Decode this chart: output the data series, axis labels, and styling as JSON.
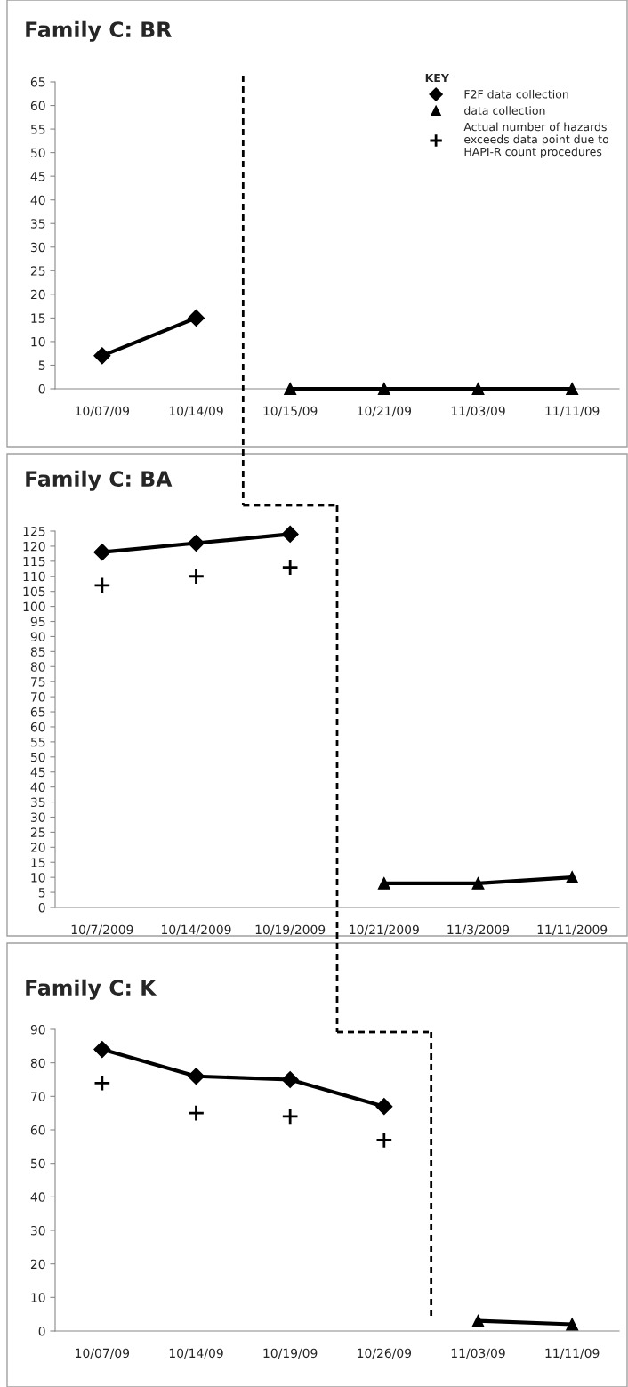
{
  "chart_data": [
    {
      "type": "line",
      "title": "Family C: BR",
      "categories": [
        "10/07/09",
        "10/14/09",
        "10/15/09",
        "10/21/09",
        "11/03/09",
        "11/11/09"
      ],
      "series": [
        {
          "name": "F2F data collection",
          "color": "#000000",
          "marker": "diamond",
          "values": [
            7,
            15,
            null,
            null,
            null,
            null
          ]
        },
        {
          "name": "data collection",
          "color": "#000000",
          "marker": "triangle",
          "values": [
            null,
            null,
            0,
            0,
            0,
            0
          ]
        },
        {
          "name": "Actual number of hazards exceeds data point due to HAPI-R count procedures",
          "type": "scatter",
          "color": "#000000",
          "marker": "cross",
          "values": [
            null,
            null,
            null,
            null,
            null,
            null
          ]
        }
      ],
      "ylim": [
        0,
        65
      ],
      "yticks": [
        0,
        5,
        10,
        15,
        20,
        25,
        30,
        35,
        40,
        45,
        50,
        55,
        60,
        65
      ],
      "legend": "top right",
      "legend_title": "KEY",
      "grid": false
    },
    {
      "type": "line",
      "title": "Family C: BA",
      "categories": [
        "10/7/2009",
        "10/14/2009",
        "10/19/2009",
        "10/21/2009",
        "11/3/2009",
        "11/11/2009"
      ],
      "series": [
        {
          "color": "#000000",
          "marker": "diamond",
          "values": [
            118,
            121,
            124,
            null,
            null,
            null
          ]
        },
        {
          "color": "#000000",
          "marker": "triangle",
          "values": [
            null,
            null,
            null,
            8,
            8,
            10
          ]
        },
        {
          "type": "scatter",
          "color": "#000000",
          "marker": "cross",
          "values": [
            107,
            110,
            113,
            null,
            null,
            null
          ]
        }
      ],
      "ylim": [
        0,
        125
      ],
      "yticks": [
        0,
        5,
        10,
        15,
        20,
        25,
        30,
        35,
        40,
        45,
        50,
        55,
        60,
        65,
        70,
        75,
        80,
        85,
        90,
        95,
        100,
        105,
        110,
        115,
        120,
        125
      ],
      "grid": false
    },
    {
      "type": "line",
      "title": "Family C: K",
      "categories": [
        "10/07/09",
        "10/14/09",
        "10/19/09",
        "10/26/09",
        "11/03/09",
        "11/11/09"
      ],
      "series": [
        {
          "color": "#000000",
          "marker": "diamond",
          "values": [
            84,
            76,
            75,
            67,
            null,
            null
          ]
        },
        {
          "color": "#000000",
          "marker": "triangle",
          "values": [
            null,
            null,
            null,
            null,
            3,
            2
          ]
        },
        {
          "type": "scatter",
          "color": "#000000",
          "marker": "cross",
          "values": [
            74,
            65,
            64,
            57,
            null,
            null
          ]
        }
      ],
      "ylim": [
        0,
        90
      ],
      "yticks": [
        0,
        10,
        20,
        30,
        40,
        50,
        60,
        70,
        80,
        90
      ],
      "grid": false
    }
  ]
}
